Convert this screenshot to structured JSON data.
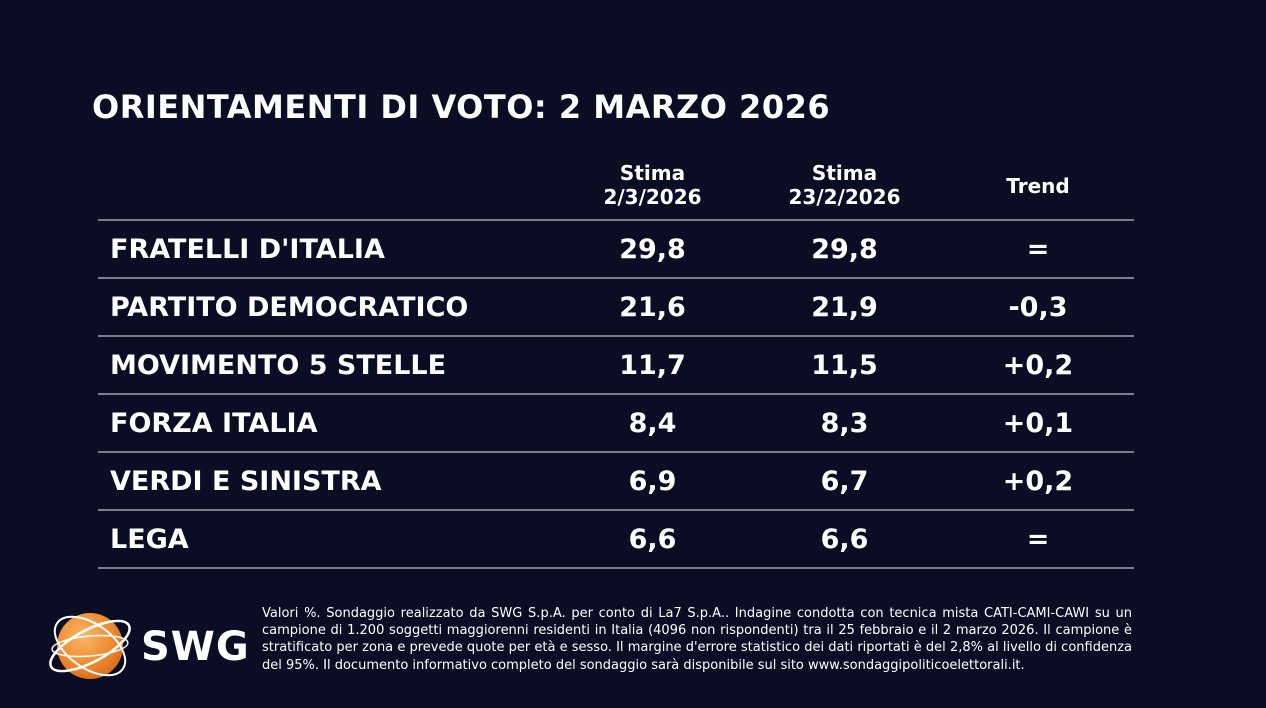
{
  "title": "ORIENTAMENTI DI VOTO: 2 MARZO 2026",
  "columns": {
    "current_line1": "Stima",
    "current_line2": "2/3/2026",
    "previous_line1": "Stima",
    "previous_line2": "23/2/2026",
    "trend": "Trend"
  },
  "chart_data": {
    "type": "table",
    "title": "ORIENTAMENTI DI VOTO: 2 MARZO 2026",
    "columns": [
      "Stima 2/3/2026",
      "Stima 23/2/2026",
      "Trend"
    ],
    "rows": [
      {
        "party": "FRATELLI D'ITALIA",
        "current": "29,8",
        "previous": "29,8",
        "trend": "="
      },
      {
        "party": "PARTITO DEMOCRATICO",
        "current": "21,6",
        "previous": "21,9",
        "trend": "-0,3"
      },
      {
        "party": "MOVIMENTO 5 STELLE",
        "current": "11,7",
        "previous": "11,5",
        "trend": "+0,2"
      },
      {
        "party": "FORZA ITALIA",
        "current": "8,4",
        "previous": "8,3",
        "trend": "+0,1"
      },
      {
        "party": "VERDI E SINISTRA",
        "current": "6,9",
        "previous": "6,7",
        "trend": "+0,2"
      },
      {
        "party": "LEGA",
        "current": "6,6",
        "previous": "6,6",
        "trend": "="
      }
    ]
  },
  "logo": {
    "text": "SWG",
    "accent": "#f0923a"
  },
  "footnote": "Valori %. Sondaggio realizzato da SWG S.p.A. per conto di La7 S.p.A.. Indagine condotta con tecnica mista CATI-CAMI-CAWI su un campione di 1.200 soggetti maggiorenni residenti in Italia (4096 non rispondenti) tra il 25 febbraio e il 2 marzo 2026. Il campione è stratificato per zona e prevede quote per età e sesso. Il margine d'errore statistico dei dati riportati è del 2,8% al livello di confidenza del 95%. Il documento informativo completo del sondaggio sarà disponibile sul sito www.sondaggipoliticoelettorali.it.",
  "colors": {
    "background": "#0b0d24",
    "rule": "#7a7d8c",
    "text": "#ffffff"
  }
}
